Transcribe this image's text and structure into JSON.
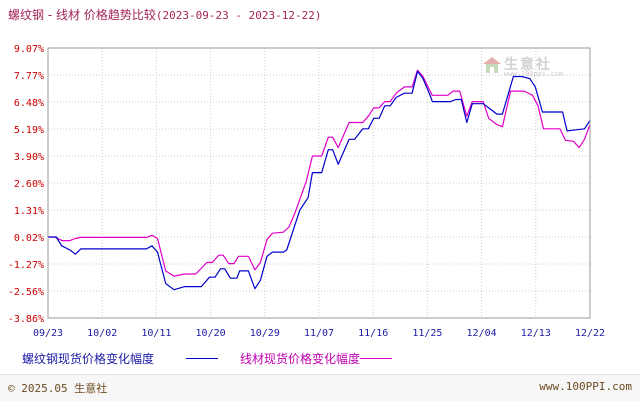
{
  "header": {
    "product": "螺纹钢",
    "separator": "-",
    "compare_product": "线材",
    "title_suffix": "价格趋势比较",
    "date_range": "(2023-09-23 - 2023-12-22)"
  },
  "watermark": {
    "brand": "生意社",
    "url": "www.100ppi.com"
  },
  "footer": {
    "copyright": "© 2025.05 生意社",
    "website": "www.100PPI.com"
  },
  "colors": {
    "series_rebar": "#0000cc",
    "series_wire": "#e000c8",
    "grid": "#cccccc",
    "y_tick": "#cc0000",
    "x_tick": "#1a1aa6",
    "title": "#a3245a"
  },
  "chart_data": {
    "type": "line",
    "ylabel": "",
    "xlabel": "",
    "yticks": [
      "9.07%",
      "7.77%",
      "6.48%",
      "5.19%",
      "3.90%",
      "2.60%",
      "1.31%",
      "0.02%",
      "-1.27%",
      "-2.56%",
      "-3.86%"
    ],
    "ytick_values": [
      9.07,
      7.77,
      6.48,
      5.19,
      3.9,
      2.6,
      1.31,
      0.02,
      -1.27,
      -2.56,
      -3.86
    ],
    "ylim": [
      -3.86,
      9.07
    ],
    "xticks": [
      "09/23",
      "10/02",
      "10/11",
      "10/20",
      "10/29",
      "11/07",
      "11/16",
      "11/25",
      "12/04",
      "12/13",
      "12/22"
    ],
    "x_day_range": [
      0,
      90
    ],
    "grid": true,
    "legend_position": "bottom-left",
    "series": [
      {
        "name": "螺纹钢现货价格变化幅度",
        "points": [
          [
            0,
            0.02
          ],
          [
            1.5,
            0.02
          ],
          [
            2.5,
            -0.4
          ],
          [
            4,
            -0.6
          ],
          [
            5,
            -0.8
          ],
          [
            6,
            -0.55
          ],
          [
            11,
            -0.55
          ],
          [
            13,
            -0.55
          ],
          [
            18,
            -0.55
          ],
          [
            19,
            -0.4
          ],
          [
            20,
            -0.7
          ],
          [
            21.5,
            -2.2
          ],
          [
            23,
            -2.5
          ],
          [
            25,
            -2.35
          ],
          [
            28,
            -2.35
          ],
          [
            29.5,
            -1.9
          ],
          [
            30.5,
            -1.9
          ],
          [
            31.5,
            -1.5
          ],
          [
            32.3,
            -1.5
          ],
          [
            33.3,
            -1.95
          ],
          [
            34.5,
            -1.95
          ],
          [
            35,
            -1.6
          ],
          [
            36.6,
            -1.6
          ],
          [
            37.8,
            -2.45
          ],
          [
            38.8,
            -2.05
          ],
          [
            40,
            -0.9
          ],
          [
            41,
            -0.7
          ],
          [
            43,
            -0.7
          ],
          [
            43.6,
            -0.6
          ],
          [
            46,
            1.3
          ],
          [
            47.5,
            1.9
          ],
          [
            48.3,
            3.1
          ],
          [
            50,
            3.1
          ],
          [
            51.2,
            4.2
          ],
          [
            52,
            4.2
          ],
          [
            53,
            3.5
          ],
          [
            55,
            4.7
          ],
          [
            56,
            4.7
          ],
          [
            57.5,
            5.2
          ],
          [
            58.5,
            5.2
          ],
          [
            59.5,
            5.7
          ],
          [
            60.5,
            5.7
          ],
          [
            61.5,
            6.3
          ],
          [
            62.5,
            6.3
          ],
          [
            63.6,
            6.7
          ],
          [
            65.1,
            6.9
          ],
          [
            66.5,
            6.9
          ],
          [
            67.5,
            7.95
          ],
          [
            68.5,
            7.6
          ],
          [
            69.8,
            6.8
          ],
          [
            70.2,
            6.5
          ],
          [
            73.5,
            6.5
          ],
          [
            74.5,
            6.6
          ],
          [
            75.5,
            6.6
          ],
          [
            76.5,
            5.5
          ],
          [
            77.5,
            6.4
          ],
          [
            79.5,
            6.4
          ],
          [
            80.5,
            6.2
          ],
          [
            82,
            5.9
          ],
          [
            83,
            5.9
          ],
          [
            85,
            7.7
          ],
          [
            86.5,
            7.7
          ],
          [
            88,
            7.6
          ],
          [
            89,
            7.2
          ],
          [
            90.3,
            6.0
          ],
          [
            92,
            6.0
          ],
          [
            94,
            6.0
          ],
          [
            94.8,
            5.1
          ],
          [
            96.5,
            5.15
          ],
          [
            98,
            5.2
          ],
          [
            99,
            5.6
          ]
        ]
      },
      {
        "name": "线材现货价格变化幅度",
        "points": [
          [
            0,
            0.02
          ],
          [
            1.2,
            0.02
          ],
          [
            2.6,
            -0.15
          ],
          [
            4,
            -0.15
          ],
          [
            5,
            -0.05
          ],
          [
            6,
            0.0
          ],
          [
            13,
            0.0
          ],
          [
            18,
            0.0
          ],
          [
            19,
            0.1
          ],
          [
            20,
            -0.05
          ],
          [
            21.5,
            -1.6
          ],
          [
            23,
            -1.85
          ],
          [
            25,
            -1.75
          ],
          [
            27,
            -1.75
          ],
          [
            29,
            -1.2
          ],
          [
            30,
            -1.2
          ],
          [
            31.2,
            -0.85
          ],
          [
            32,
            -0.85
          ],
          [
            33,
            -1.25
          ],
          [
            34,
            -1.25
          ],
          [
            34.8,
            -0.9
          ],
          [
            36.6,
            -0.9
          ],
          [
            37.8,
            -1.55
          ],
          [
            38.8,
            -1.2
          ],
          [
            40,
            -0.1
          ],
          [
            41,
            0.2
          ],
          [
            43,
            0.25
          ],
          [
            44,
            0.5
          ],
          [
            45,
            1.1
          ],
          [
            47.2,
            2.7
          ],
          [
            48.3,
            3.9
          ],
          [
            50,
            3.9
          ],
          [
            51.2,
            4.8
          ],
          [
            52,
            4.8
          ],
          [
            53,
            4.3
          ],
          [
            55,
            5.5
          ],
          [
            57.5,
            5.5
          ],
          [
            58.5,
            5.8
          ],
          [
            59.5,
            6.2
          ],
          [
            60.5,
            6.2
          ],
          [
            61.5,
            6.5
          ],
          [
            62.5,
            6.5
          ],
          [
            63.6,
            6.9
          ],
          [
            65.1,
            7.2
          ],
          [
            66.5,
            7.2
          ],
          [
            67.5,
            8.0
          ],
          [
            68.5,
            7.7
          ],
          [
            69.8,
            7.0
          ],
          [
            70.2,
            6.8
          ],
          [
            73,
            6.8
          ],
          [
            74,
            7.0
          ],
          [
            75.2,
            7.0
          ],
          [
            76.5,
            5.8
          ],
          [
            77.5,
            6.5
          ],
          [
            79.5,
            6.5
          ],
          [
            80.5,
            5.7
          ],
          [
            82,
            5.4
          ],
          [
            83,
            5.3
          ],
          [
            84.5,
            7.0
          ],
          [
            87,
            7.0
          ],
          [
            88.5,
            6.8
          ],
          [
            89.5,
            6.3
          ],
          [
            90.5,
            5.2
          ],
          [
            92,
            5.2
          ],
          [
            93.5,
            5.2
          ],
          [
            94.5,
            4.65
          ],
          [
            96,
            4.6
          ],
          [
            97,
            4.3
          ],
          [
            98,
            4.7
          ],
          [
            99,
            5.4
          ]
        ]
      }
    ]
  },
  "legend": {
    "items": [
      "螺纹钢现货价格变化幅度",
      "线材现货价格变化幅度"
    ]
  }
}
